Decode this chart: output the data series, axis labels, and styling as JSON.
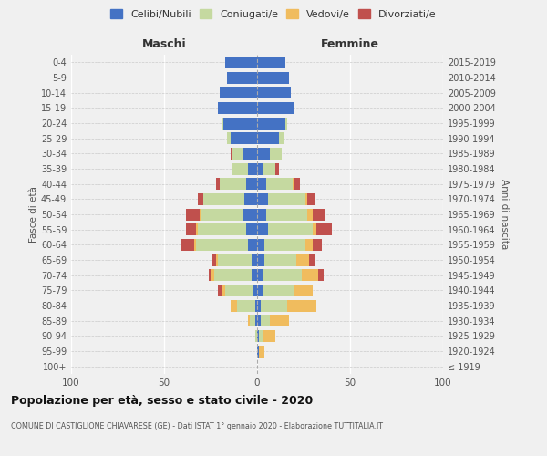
{
  "age_groups": [
    "100+",
    "95-99",
    "90-94",
    "85-89",
    "80-84",
    "75-79",
    "70-74",
    "65-69",
    "60-64",
    "55-59",
    "50-54",
    "45-49",
    "40-44",
    "35-39",
    "30-34",
    "25-29",
    "20-24",
    "15-19",
    "10-14",
    "5-9",
    "0-4"
  ],
  "birth_years": [
    "≤ 1919",
    "1920-1924",
    "1925-1929",
    "1930-1934",
    "1935-1939",
    "1940-1944",
    "1945-1949",
    "1950-1954",
    "1955-1959",
    "1960-1964",
    "1965-1969",
    "1970-1974",
    "1975-1979",
    "1980-1984",
    "1985-1989",
    "1990-1994",
    "1995-1999",
    "2000-2004",
    "2005-2009",
    "2010-2014",
    "2015-2019"
  ],
  "males": {
    "celibi": [
      0,
      0,
      0,
      1,
      1,
      2,
      3,
      3,
      5,
      6,
      8,
      7,
      6,
      5,
      8,
      14,
      18,
      21,
      20,
      16,
      17
    ],
    "coniugati": [
      0,
      0,
      1,
      3,
      10,
      15,
      20,
      18,
      28,
      26,
      22,
      22,
      14,
      8,
      5,
      2,
      1,
      0,
      0,
      0,
      0
    ],
    "vedovi": [
      0,
      0,
      0,
      1,
      3,
      2,
      2,
      1,
      1,
      1,
      1,
      0,
      0,
      0,
      0,
      0,
      0,
      0,
      0,
      0,
      0
    ],
    "divorziati": [
      0,
      0,
      0,
      0,
      0,
      2,
      1,
      2,
      7,
      5,
      7,
      3,
      2,
      0,
      1,
      0,
      0,
      0,
      0,
      0,
      0
    ]
  },
  "females": {
    "nubili": [
      0,
      1,
      1,
      2,
      2,
      3,
      3,
      4,
      4,
      6,
      5,
      6,
      5,
      3,
      7,
      12,
      15,
      20,
      18,
      17,
      15
    ],
    "coniugate": [
      0,
      0,
      2,
      5,
      14,
      17,
      21,
      17,
      22,
      24,
      22,
      20,
      14,
      7,
      6,
      2,
      1,
      0,
      0,
      0,
      0
    ],
    "vedove": [
      0,
      3,
      7,
      10,
      16,
      10,
      9,
      7,
      4,
      2,
      3,
      1,
      1,
      0,
      0,
      0,
      0,
      0,
      0,
      0,
      0
    ],
    "divorziate": [
      0,
      0,
      0,
      0,
      0,
      0,
      3,
      3,
      5,
      8,
      7,
      4,
      3,
      2,
      0,
      0,
      0,
      0,
      0,
      0,
      0
    ]
  },
  "colors": {
    "celibi": "#4472C4",
    "coniugati": "#C5D9A0",
    "vedovi": "#F0BC5E",
    "divorziati": "#C0504D"
  },
  "xlim": 100,
  "title": "Popolazione per età, sesso e stato civile - 2020",
  "subtitle": "COMUNE DI CASTIGLIONE CHIAVARESE (GE) - Dati ISTAT 1° gennaio 2020 - Elaborazione TUTTITALIA.IT",
  "ylabel_left": "Fasce di età",
  "ylabel_right": "Anni di nascita",
  "legend_labels": [
    "Celibi/Nubili",
    "Coniugati/e",
    "Vedovi/e",
    "Divorziati/e"
  ],
  "maschi_label": "Maschi",
  "femmine_label": "Femmine",
  "bg_color": "#f0f0f0"
}
